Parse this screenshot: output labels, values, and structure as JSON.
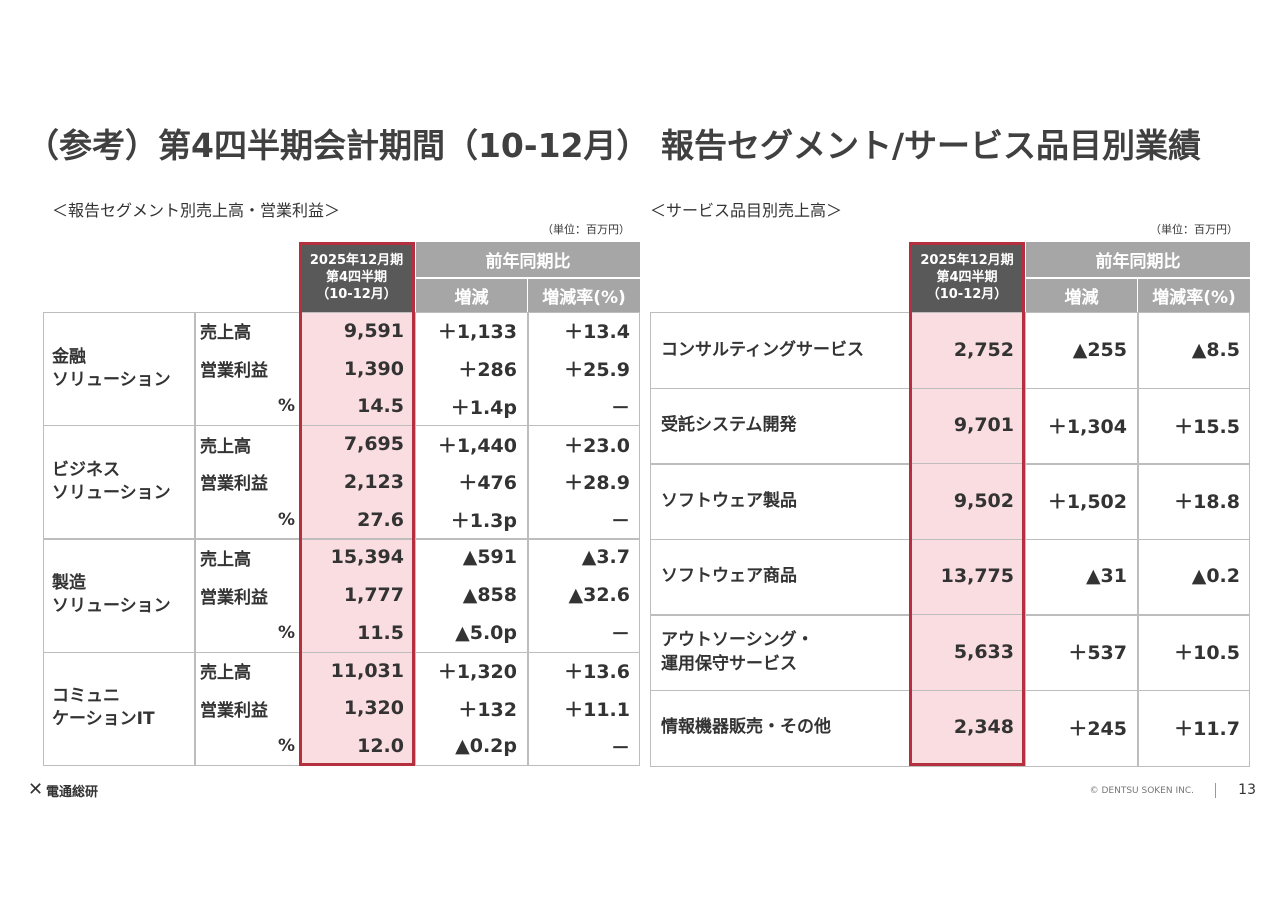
{
  "title": "（参考）第4四半期会計期間（10-12月） 報告セグメント/サービス品目別業績",
  "left": {
    "heading": "＜報告セグメント別売上高・営業利益＞",
    "unit": "（単位：百万円）",
    "col_period": "2025年12月期\n第4四半期\n（10-12月）",
    "col_yoy": "前年同期比",
    "col_diff": "増減",
    "col_rate": "増減率(%)",
    "segments": [
      {
        "name": "金融\nソリューション",
        "rows": [
          [
            "売上高",
            "9,591",
            "＋1,133",
            "＋13.4"
          ],
          [
            "営業利益",
            "1,390",
            "＋286",
            "＋25.9"
          ],
          [
            "%",
            "14.5",
            "＋1.4p",
            "－"
          ]
        ]
      },
      {
        "name": "ビジネス\nソリューション",
        "rows": [
          [
            "売上高",
            "7,695",
            "＋1,440",
            "＋23.0"
          ],
          [
            "営業利益",
            "2,123",
            "＋476",
            "＋28.9"
          ],
          [
            "%",
            "27.6",
            "＋1.3p",
            "－"
          ]
        ]
      },
      {
        "name": "製造\nソリューション",
        "rows": [
          [
            "売上高",
            "15,394",
            "▲591",
            "▲3.7"
          ],
          [
            "営業利益",
            "1,777",
            "▲858",
            "▲32.6"
          ],
          [
            "%",
            "11.5",
            "▲5.0p",
            "－"
          ]
        ]
      },
      {
        "name": "コミュニ\nケーションIT",
        "rows": [
          [
            "売上高",
            "11,031",
            "＋1,320",
            "＋13.6"
          ],
          [
            "営業利益",
            "1,320",
            "＋132",
            "＋11.1"
          ],
          [
            "%",
            "12.0",
            "▲0.2p",
            "－"
          ]
        ]
      }
    ]
  },
  "right": {
    "heading": "＜サービス品目別売上高＞",
    "unit": "（単位：百万円）",
    "col_period": "2025年12月期\n第4四半期\n（10-12月）",
    "col_yoy": "前年同期比",
    "col_diff": "増減",
    "col_rate": "増減率(%)",
    "rows": [
      [
        "コンサルティングサービス",
        "2,752",
        "▲255",
        "▲8.5"
      ],
      [
        "受託システム開発",
        "9,701",
        "＋1,304",
        "＋15.5"
      ],
      [
        "ソフトウェア製品",
        "9,502",
        "＋1,502",
        "＋18.8"
      ],
      [
        "ソフトウェア商品",
        "13,775",
        "▲31",
        "▲0.2"
      ],
      [
        "アウトソーシング・\n運用保守サービス",
        "5,633",
        "＋537",
        "＋10.5"
      ],
      [
        "情報機器販売・その他",
        "2,348",
        "＋245",
        "＋11.7"
      ]
    ]
  },
  "footer": {
    "logo": "電通総研",
    "copyright": "© DENTSU SOKEN INC.",
    "page": "13"
  }
}
